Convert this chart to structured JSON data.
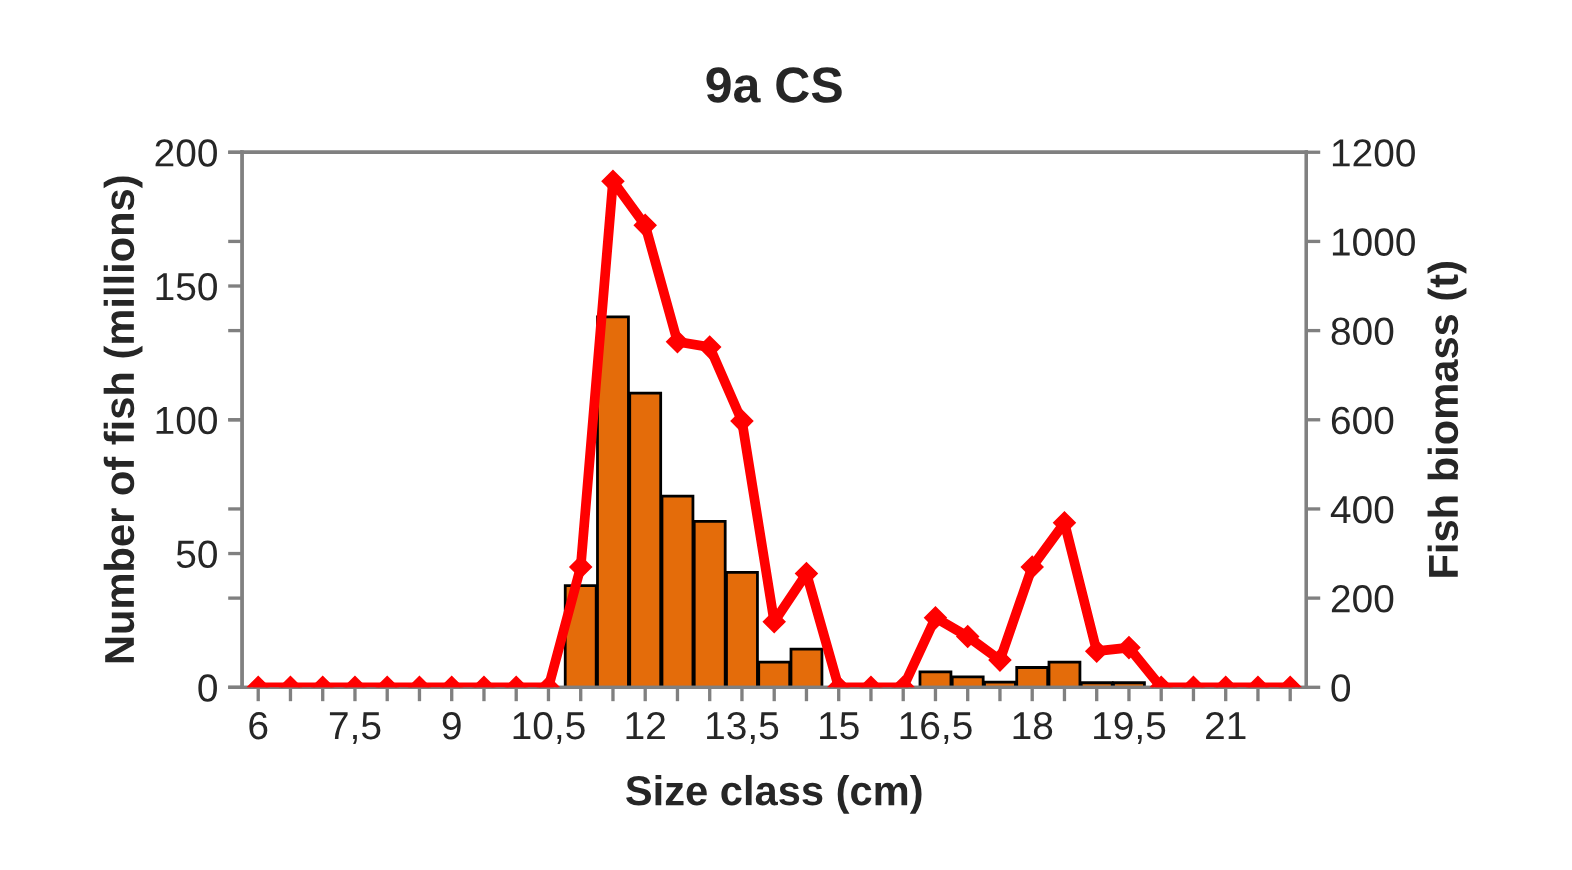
{
  "chart_data": {
    "type": "bar",
    "title": "9a CS",
    "xlabel": "Size class (cm)",
    "ylabel": "Number of fish (millions)",
    "y2label": "Fish biomass (t)",
    "categories": [
      "6",
      null,
      null,
      "7,5",
      null,
      null,
      "9",
      null,
      null,
      "10,5",
      null,
      null,
      "12",
      null,
      null,
      "13,5",
      null,
      null,
      "15",
      null,
      null,
      "16,5",
      null,
      null,
      "18",
      null,
      null,
      "19,5",
      null,
      null,
      "21",
      null,
      null
    ],
    "series": [
      {
        "color": "#e46c0a",
        "values": [
          0,
          0,
          0,
          0,
          0,
          0,
          0,
          0,
          0,
          0,
          38,
          138.5,
          110,
          71.5,
          62,
          43,
          9.4,
          14.3,
          0,
          0,
          0,
          5.8,
          3.9,
          1.9,
          7.4,
          9.4,
          1.7,
          1.7,
          0,
          0,
          0,
          0,
          0
        ]
      },
      {
        "type": "line",
        "axis": "y2",
        "color": "#ff0000",
        "marker": "diamond",
        "line_style": "solid",
        "values": [
          0,
          0,
          0,
          0,
          0,
          0,
          0,
          0,
          0,
          0,
          270,
          1135,
          1036,
          775,
          763,
          597,
          147,
          255,
          0,
          0,
          0,
          156,
          114,
          61,
          270,
          369,
          81,
          89,
          0,
          0,
          0,
          0,
          0
        ]
      }
    ],
    "ylim": [
      0,
      200
    ],
    "yticks": [
      0,
      50,
      100,
      150,
      200
    ],
    "y2lim": [
      0,
      1200
    ],
    "y2ticks": [
      0,
      200,
      400,
      600,
      800,
      1000,
      1200
    ],
    "grid": false,
    "legend": false
  }
}
